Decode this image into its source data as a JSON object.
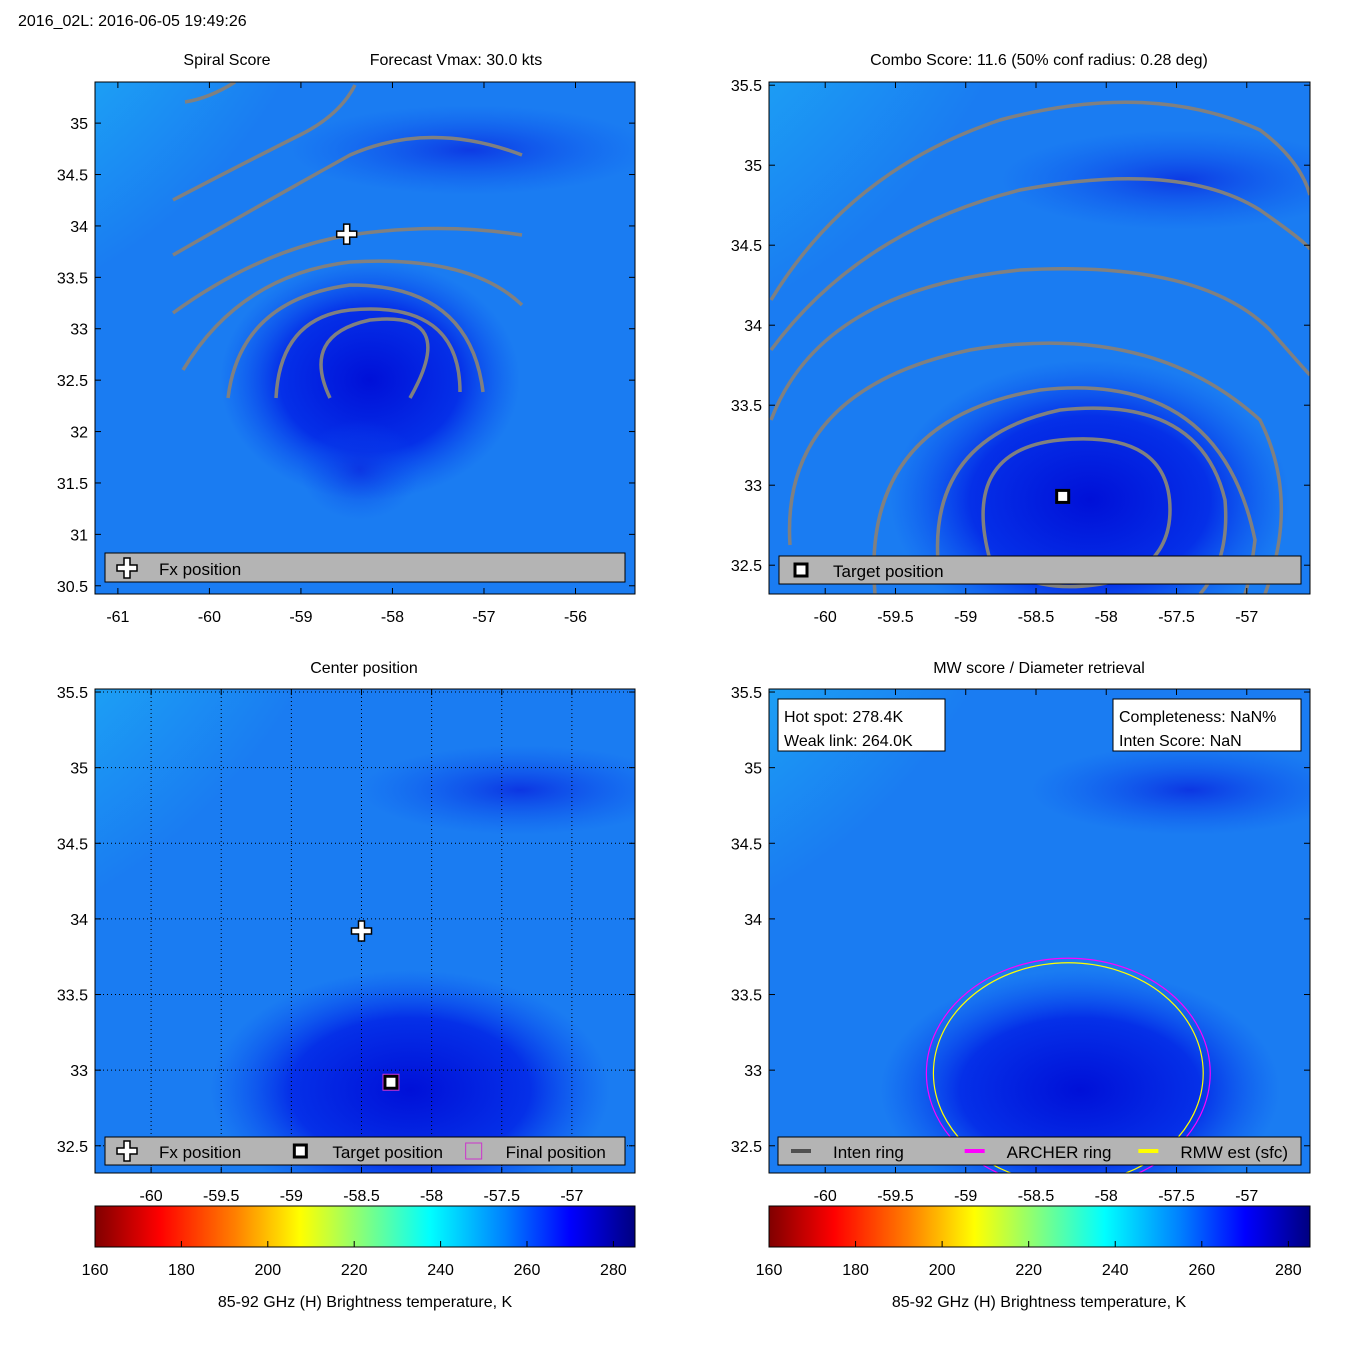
{
  "figure_title": "2016_02L: 2016-06-05 19:49:26",
  "colorbar_label": "85-92 GHz (H) Brightness temperature, K",
  "colorbar_ticks": [
    160,
    180,
    200,
    220,
    240,
    260,
    280
  ],
  "colorbar_range": [
    160,
    285
  ],
  "chart_data": [
    {
      "type": "heatmap",
      "panel": "spiral",
      "title_left": "Spiral Score",
      "title_right": "Forecast Vmax: 30.0 kts",
      "xlim": [
        -61.25,
        -55.35
      ],
      "ylim": [
        30.42,
        35.4
      ],
      "xticks": [
        -61,
        -60,
        -59,
        -58,
        -57,
        -56
      ],
      "yticks": [
        30.5,
        31,
        31.5,
        32,
        32.5,
        33,
        33.5,
        34,
        34.5,
        35
      ],
      "markers": [
        {
          "kind": "fx",
          "x": -58.5,
          "y": 33.92
        }
      ],
      "legend": [
        {
          "kind": "fx",
          "label": "Fx position"
        }
      ],
      "legend_placement": "bottom"
    },
    {
      "type": "heatmap",
      "panel": "combo",
      "title": "Combo Score: 11.6  (50% conf radius: 0.28 deg)",
      "xlim": [
        -60.4,
        -56.55
      ],
      "ylim": [
        32.32,
        35.52
      ],
      "xticks": [
        -60,
        -59.5,
        -59,
        -58.5,
        -58,
        -57.5,
        -57
      ],
      "yticks": [
        32.5,
        33,
        33.5,
        34,
        34.5,
        35,
        35.5
      ],
      "markers": [
        {
          "kind": "target",
          "x": -58.31,
          "y": 32.93
        }
      ],
      "legend": [
        {
          "kind": "target",
          "label": "Target position"
        }
      ],
      "legend_placement": "bottom"
    },
    {
      "type": "heatmap",
      "panel": "center",
      "title": "Center position",
      "xlim": [
        -60.4,
        -56.55
      ],
      "ylim": [
        32.32,
        35.52
      ],
      "xticks": [
        -60,
        -59.5,
        -59,
        -58.5,
        -58,
        -57.5,
        -57
      ],
      "yticks": [
        32.5,
        33,
        33.5,
        34,
        34.5,
        35,
        35.5
      ],
      "grid": true,
      "markers": [
        {
          "kind": "fx",
          "x": -58.5,
          "y": 33.92
        },
        {
          "kind": "target",
          "x": -58.29,
          "y": 32.92
        },
        {
          "kind": "final",
          "x": -58.29,
          "y": 32.92
        }
      ],
      "legend": [
        {
          "kind": "fx",
          "label": "Fx position"
        },
        {
          "kind": "target",
          "label": "Target position"
        },
        {
          "kind": "final",
          "label": "Final position"
        }
      ],
      "legend_placement": "bottom"
    },
    {
      "type": "heatmap",
      "panel": "mw",
      "title": "MW score / Diameter retrieval",
      "xlim": [
        -60.4,
        -56.55
      ],
      "ylim": [
        32.32,
        35.52
      ],
      "xticks": [
        -60,
        -59.5,
        -59,
        -58.5,
        -58,
        -57.5,
        -57
      ],
      "yticks": [
        32.5,
        33,
        33.5,
        34,
        34.5,
        35,
        35.5
      ],
      "box_left": [
        "Hot spot: 278.4K",
        "Weak link: 264.0K"
      ],
      "box_right": [
        "Completeness: NaN%",
        "Inten Score: NaN"
      ],
      "rings": [
        {
          "kind": "archer",
          "cx": -58.27,
          "cy": 32.98,
          "rx": 1.01,
          "ry": 0.76
        },
        {
          "kind": "rmw",
          "cx": -58.27,
          "cy": 32.98,
          "rx": 0.96,
          "ry": 0.73
        }
      ],
      "legend": [
        {
          "kind": "inten",
          "label": "Inten ring"
        },
        {
          "kind": "archer",
          "label": "ARCHER ring"
        },
        {
          "kind": "rmw",
          "label": "RMW est (sfc)"
        }
      ],
      "legend_placement": "bottom",
      "colorbar_markers": [
        {
          "kind": "weak",
          "value": 264.0
        },
        {
          "kind": "hot",
          "value": 278.4
        }
      ]
    }
  ],
  "colors": {
    "contour": "#808080",
    "archer": "#ff00ff",
    "rmw": "#ffff00",
    "inten": "#505050",
    "legend_bg": "#b4b4b4",
    "final": "#cc33cc"
  }
}
